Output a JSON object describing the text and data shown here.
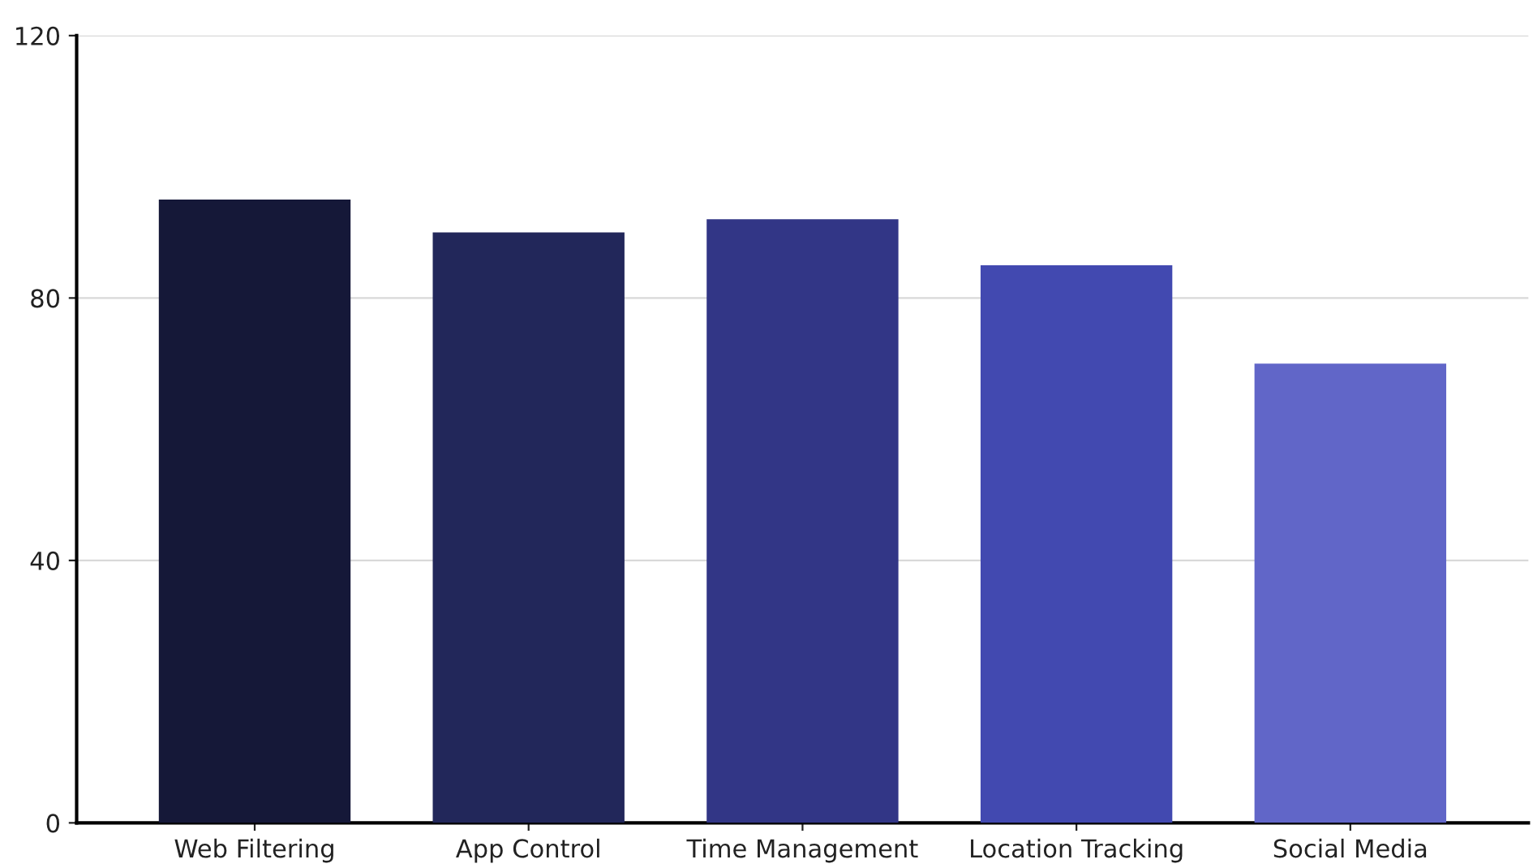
{
  "chart_data": {
    "type": "bar",
    "categories": [
      "Web Filtering",
      "App Control",
      "Time Management",
      "Location Tracking",
      "Social Media"
    ],
    "values": [
      95,
      90,
      92,
      85,
      70
    ],
    "colors": [
      "#151838",
      "#22275a",
      "#323686",
      "#4249b0",
      "#6166c8"
    ],
    "ylim": [
      0,
      120
    ],
    "yticks": [
      0,
      40,
      80,
      120
    ],
    "grid": "y"
  }
}
